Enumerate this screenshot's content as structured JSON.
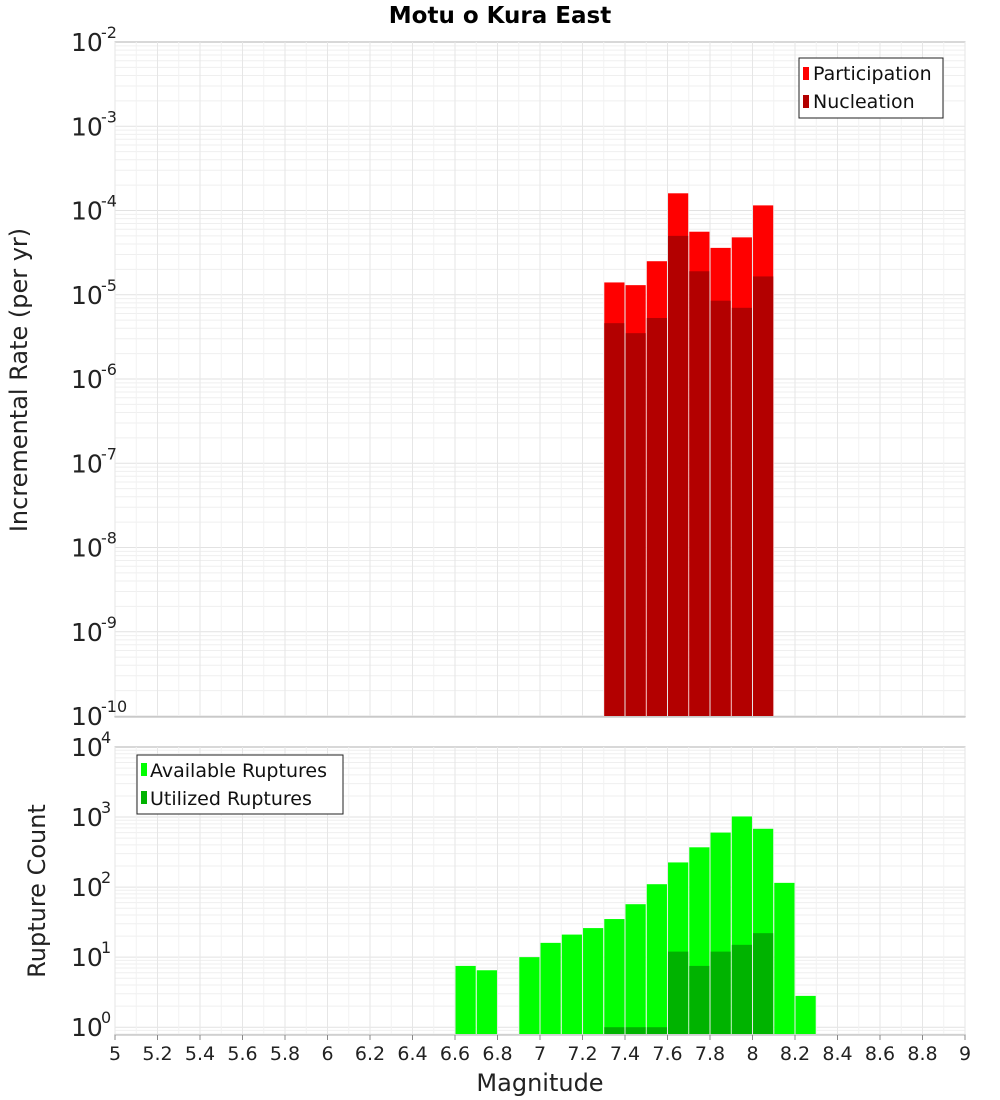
{
  "chart_data": [
    {
      "type": "bar",
      "title": "Motu o Kura East",
      "xlabel": "",
      "ylabel": "Incremental Rate (per yr)",
      "yscale": "log",
      "ylim": [
        1e-10,
        0.01
      ],
      "y_ticks": [
        {
          "base": "10",
          "exp": "-10"
        },
        {
          "base": "10",
          "exp": "-9"
        },
        {
          "base": "10",
          "exp": "-8"
        },
        {
          "base": "10",
          "exp": "-7"
        },
        {
          "base": "10",
          "exp": "-6"
        },
        {
          "base": "10",
          "exp": "-5"
        },
        {
          "base": "10",
          "exp": "-4"
        },
        {
          "base": "10",
          "exp": "-3"
        },
        {
          "base": "10",
          "exp": "-2"
        }
      ],
      "legend_position": "top-right",
      "grid": true,
      "x": [
        7.35,
        7.45,
        7.55,
        7.65,
        7.75,
        7.85,
        7.95,
        8.05
      ],
      "series": [
        {
          "name": "Participation",
          "color": "#ff0000",
          "values": [
            1.4e-05,
            1.3e-05,
            2.5e-05,
            0.00016,
            5.6e-05,
            3.6e-05,
            4.8e-05,
            0.000115
          ]
        },
        {
          "name": "Nucleation",
          "color": "#b30000",
          "values": [
            4.6e-06,
            3.5e-06,
            5.3e-06,
            5e-05,
            1.9e-05,
            8.5e-06,
            7e-06,
            1.65e-05
          ]
        }
      ]
    },
    {
      "type": "bar",
      "title": "",
      "xlabel": "Magnitude",
      "ylabel": "Rupture Count",
      "yscale": "log",
      "ylim": [
        0.8,
        10000.0
      ],
      "y_ticks": [
        {
          "base": "10",
          "exp": "0"
        },
        {
          "base": "10",
          "exp": "1"
        },
        {
          "base": "10",
          "exp": "2"
        },
        {
          "base": "10",
          "exp": "3"
        },
        {
          "base": "10",
          "exp": "4"
        }
      ],
      "xlim": [
        5,
        9
      ],
      "x_ticks": [
        "5",
        "5.2",
        "5.4",
        "5.6",
        "5.8",
        "6",
        "6.2",
        "6.4",
        "6.6",
        "6.8",
        "7",
        "7.2",
        "7.4",
        "7.6",
        "7.8",
        "8",
        "8.2",
        "8.4",
        "8.6",
        "8.8",
        "9"
      ],
      "legend_position": "top-left",
      "grid": true,
      "series": [
        {
          "name": "Available Ruptures",
          "color": "#00ff00",
          "x": [
            6.65,
            6.75,
            6.95,
            7.05,
            7.15,
            7.25,
            7.35,
            7.45,
            7.55,
            7.65,
            7.75,
            7.85,
            7.95,
            8.05,
            8.15,
            8.25
          ],
          "values": [
            7.5,
            6.5,
            10,
            16,
            21,
            26,
            35,
            57,
            110,
            225,
            370,
            600,
            1020,
            680,
            115,
            2.8
          ]
        },
        {
          "name": "Utilized Ruptures",
          "color": "#00b300",
          "x": [
            7.35,
            7.45,
            7.55,
            7.65,
            7.75,
            7.85,
            7.95,
            8.05
          ],
          "values": [
            1,
            1,
            1,
            12,
            7.5,
            12,
            15,
            22
          ]
        }
      ]
    }
  ]
}
